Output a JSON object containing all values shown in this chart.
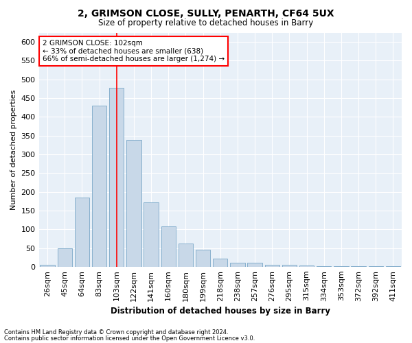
{
  "title": "2, GRIMSON CLOSE, SULLY, PENARTH, CF64 5UX",
  "subtitle": "Size of property relative to detached houses in Barry",
  "xlabel": "Distribution of detached houses by size in Barry",
  "ylabel": "Number of detached properties",
  "footnote1": "Contains HM Land Registry data © Crown copyright and database right 2024.",
  "footnote2": "Contains public sector information licensed under the Open Government Licence v3.0.",
  "bar_color": "#c8d8e8",
  "bar_edge_color": "#7aa8c8",
  "background_color": "#e8f0f8",
  "categories": [
    "26sqm",
    "45sqm",
    "64sqm",
    "83sqm",
    "103sqm",
    "122sqm",
    "141sqm",
    "160sqm",
    "180sqm",
    "199sqm",
    "218sqm",
    "238sqm",
    "257sqm",
    "276sqm",
    "295sqm",
    "315sqm",
    "334sqm",
    "353sqm",
    "372sqm",
    "392sqm",
    "411sqm"
  ],
  "values": [
    5,
    50,
    185,
    430,
    478,
    338,
    172,
    107,
    62,
    45,
    22,
    10,
    10,
    5,
    5,
    3,
    2,
    1,
    2,
    1,
    1
  ],
  "ylim": [
    0,
    625
  ],
  "yticks": [
    0,
    50,
    100,
    150,
    200,
    250,
    300,
    350,
    400,
    450,
    500,
    550,
    600
  ],
  "property_label": "2 GRIMSON CLOSE: 102sqm",
  "annotation_line1": "← 33% of detached houses are smaller (638)",
  "annotation_line2": "66% of semi-detached houses are larger (1,274) →",
  "vline_bar_index": 4,
  "annotation_box_color": "white",
  "annotation_box_edge": "red",
  "vline_color": "red"
}
